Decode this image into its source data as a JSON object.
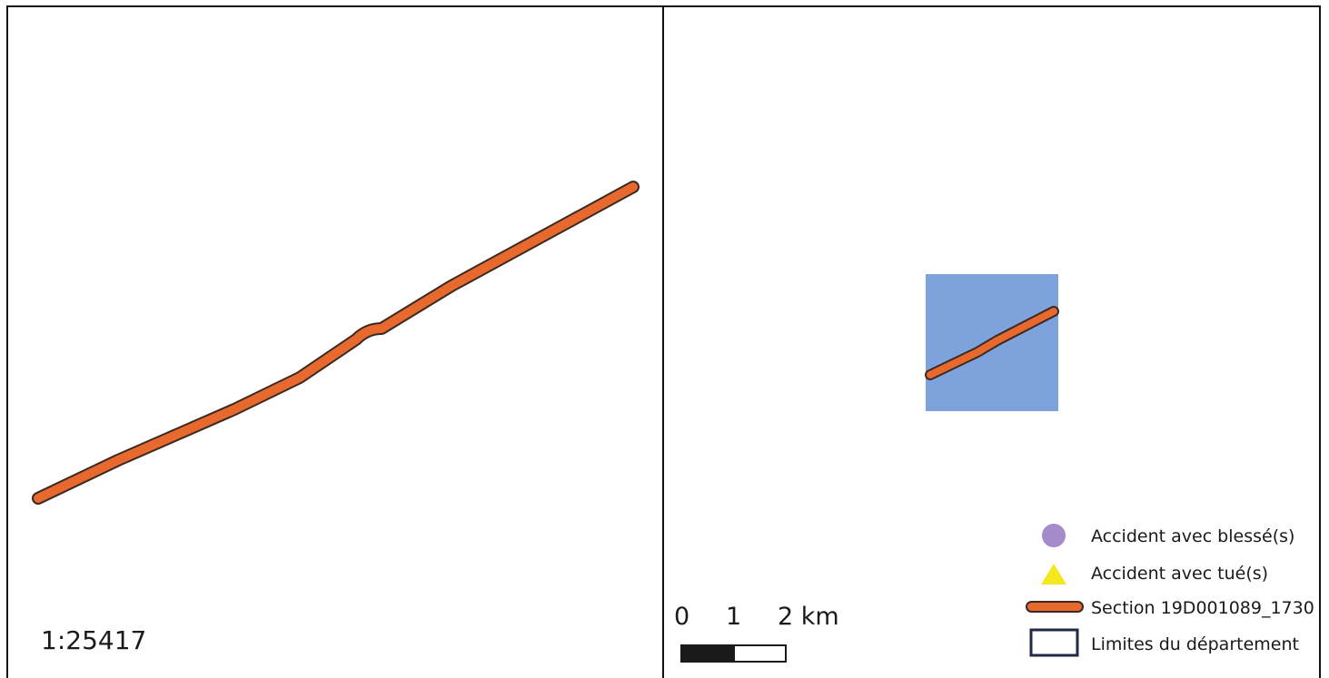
{
  "left_map": {
    "scale_text": "1:25417"
  },
  "right_map": {
    "scale_bar": {
      "label_0": "0",
      "label_1": "1",
      "label_2": "2 km"
    },
    "legend": {
      "items": [
        {
          "label": "Accident avec blessé(s)",
          "icon": "purple-circle-icon",
          "color": "#a58bc9"
        },
        {
          "label": "Accident avec tué(s)",
          "icon": "yellow-triangle-icon",
          "color": "#f5e61e"
        },
        {
          "label": "Section 19D001089_1730",
          "icon": "orange-line-icon",
          "color": "#e8692e"
        },
        {
          "label": "Limites du département",
          "icon": "boundary-box-icon",
          "color": "#1f2a44"
        }
      ]
    }
  },
  "colors": {
    "section_line": "#e8692e",
    "section_outline": "#3a2a22",
    "extent_fill": "#7ea3dc"
  }
}
